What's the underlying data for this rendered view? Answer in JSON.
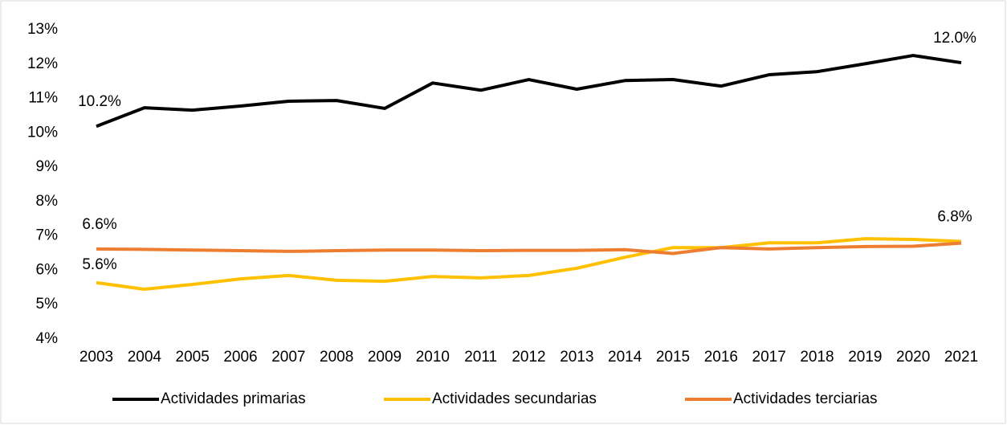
{
  "chart_data": {
    "type": "line",
    "categories": [
      "2003",
      "2004",
      "2005",
      "2006",
      "2007",
      "2008",
      "2009",
      "2010",
      "2011",
      "2012",
      "2013",
      "2014",
      "2015",
      "2016",
      "2017",
      "2018",
      "2019",
      "2020",
      "2021"
    ],
    "series": [
      {
        "name": "Actividades primarias",
        "color": "#000000",
        "values": [
          10.19,
          10.73,
          10.66,
          10.78,
          10.92,
          10.94,
          10.71,
          11.45,
          11.24,
          11.55,
          11.27,
          11.52,
          11.55,
          11.36,
          11.69,
          11.78,
          12.01,
          12.25,
          12.04
        ],
        "value_labels": [
          "10.2%",
          null,
          null,
          null,
          null,
          null,
          null,
          null,
          null,
          null,
          null,
          null,
          null,
          null,
          null,
          null,
          null,
          null,
          "12.0%"
        ]
      },
      {
        "name": "Actividades secundarias",
        "color": "#ffc000",
        "values": [
          5.64,
          5.45,
          5.59,
          5.75,
          5.85,
          5.71,
          5.68,
          5.82,
          5.78,
          5.85,
          6.06,
          6.38,
          6.66,
          6.66,
          6.8,
          6.8,
          6.92,
          6.9,
          6.84
        ],
        "value_labels": [
          "5.6%",
          null,
          null,
          null,
          null,
          null,
          null,
          null,
          null,
          null,
          null,
          null,
          null,
          null,
          null,
          null,
          null,
          null,
          "6.8%"
        ]
      },
      {
        "name": "Actividades terciarias",
        "color": "#ed7d31",
        "values": [
          6.62,
          6.61,
          6.59,
          6.57,
          6.55,
          6.57,
          6.59,
          6.59,
          6.57,
          6.58,
          6.58,
          6.6,
          6.49,
          6.66,
          6.62,
          6.66,
          6.69,
          6.7,
          6.79
        ],
        "value_labels": [
          "6.6%",
          null,
          null,
          null,
          null,
          null,
          null,
          null,
          null,
          null,
          null,
          null,
          null,
          null,
          null,
          null,
          null,
          null,
          null
        ]
      }
    ],
    "ylim": [
      4,
      13
    ],
    "yticks": [
      {
        "value": 4,
        "label": "4%"
      },
      {
        "value": 5,
        "label": "5%"
      },
      {
        "value": 6,
        "label": "6%"
      },
      {
        "value": 7,
        "label": "7%"
      },
      {
        "value": 8,
        "label": "8%"
      },
      {
        "value": 9,
        "label": "9%"
      },
      {
        "value": 10,
        "label": "10%"
      },
      {
        "value": 11,
        "label": "11%"
      },
      {
        "value": 12,
        "label": "12%"
      },
      {
        "value": 13,
        "label": "13%"
      }
    ],
    "grid": false,
    "legend": "bottom"
  }
}
